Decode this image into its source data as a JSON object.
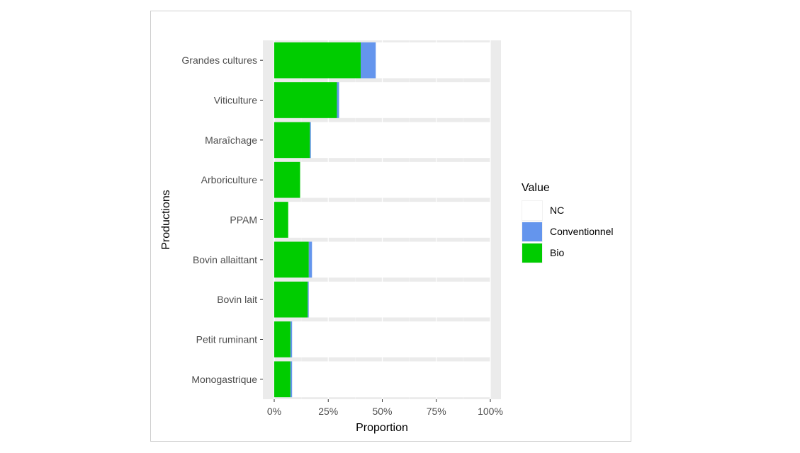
{
  "chart_data": {
    "type": "bar",
    "orientation": "horizontal",
    "stacked": true,
    "categories": [
      "Grandes cultures",
      "Viticulture",
      "Maraîchage",
      "Arboriculture",
      "PPAM",
      "Bovin allaittant",
      "Bovin lait",
      "Petit ruminant",
      "Monogastrique"
    ],
    "series": [
      {
        "name": "Bio",
        "color": "#00cc00",
        "values": [
          0.4,
          0.29,
          0.165,
          0.12,
          0.065,
          0.16,
          0.155,
          0.075,
          0.075
        ]
      },
      {
        "name": "Conventionnel",
        "color": "#6495ed",
        "values": [
          0.07,
          0.01,
          0.005,
          0.0,
          0.0,
          0.015,
          0.005,
          0.008,
          0.008
        ]
      },
      {
        "name": "NC",
        "color": "#ffffff",
        "values": [
          0.53,
          0.7,
          0.83,
          0.88,
          0.935,
          0.825,
          0.84,
          0.917,
          0.917
        ]
      }
    ],
    "xticks": [
      "0%",
      "25%",
      "50%",
      "75%",
      "100%"
    ],
    "xlim": [
      0,
      1
    ],
    "xlabel": "Proportion",
    "ylabel": "Productions",
    "grid": true,
    "legend": {
      "title": "Value",
      "placement": "right",
      "entries": [
        "NC",
        "Conventionnel",
        "Bio"
      ]
    }
  }
}
